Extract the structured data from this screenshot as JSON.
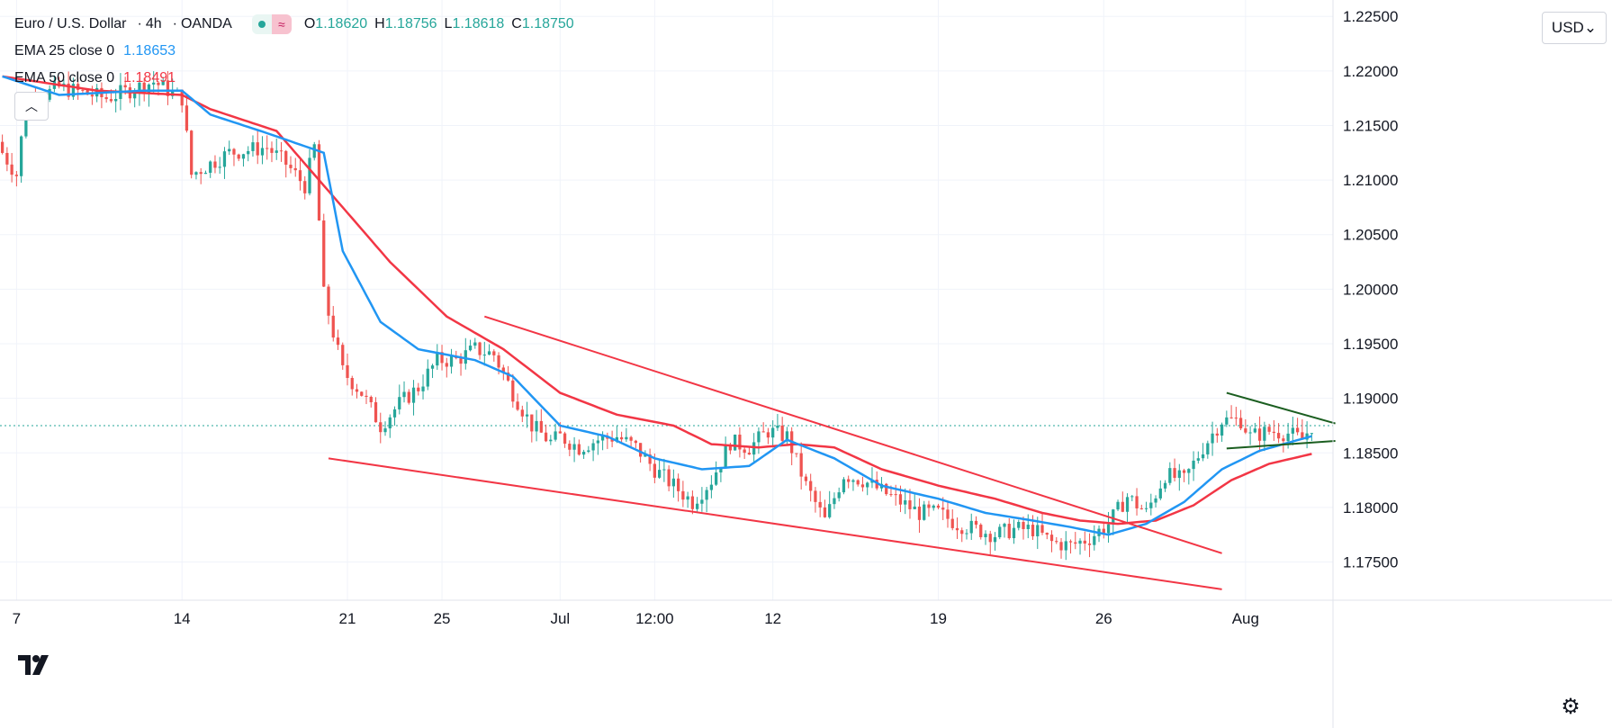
{
  "header": {
    "symbol": "Euro / U.S. Dollar",
    "sep": "·",
    "interval": "4h",
    "exchange": "OANDA",
    "badge_icon": "approx-icon",
    "ohlc": [
      {
        "label": "O",
        "value": "1.18620"
      },
      {
        "label": "H",
        "value": "1.18756"
      },
      {
        "label": "L",
        "value": "1.18618"
      },
      {
        "label": "C",
        "value": "1.18750"
      }
    ]
  },
  "indicators": [
    {
      "name": "EMA 25 close 0",
      "value": "1.18653",
      "color": "#2196f3"
    },
    {
      "name": "EMA 50 close 0",
      "value": "1.18491",
      "color": "#f23645"
    }
  ],
  "controls": {
    "collapse_icon": "chevron-up-icon",
    "currency_label": "USD",
    "currency_chevron": "⌄",
    "settings_icon": "gear-icon",
    "logo": "TradingView"
  },
  "colors": {
    "up": "#26a69a",
    "down": "#ef5350",
    "ema25": "#2196f3",
    "ema50": "#f23645",
    "trendline_red": "#f23645",
    "trendline_green": "#1b5e20",
    "grid": "#f0f3fa",
    "last_price_line": "#26a69a"
  },
  "chart_data": {
    "type": "candlestick",
    "title": "Euro / U.S. Dollar · 4h · OANDA",
    "y_axis": {
      "labels": [
        "1.17500",
        "1.18000",
        "1.18500",
        "1.19000",
        "1.19500",
        "1.20000",
        "1.20500",
        "1.21000",
        "1.21500",
        "1.22000",
        "1.22500"
      ],
      "values": [
        1.175,
        1.18,
        1.185,
        1.19,
        1.195,
        1.2,
        1.205,
        1.21,
        1.215,
        1.22,
        1.225
      ],
      "range": [
        1.1715,
        1.2265
      ]
    },
    "x_axis": {
      "labels": [
        "7",
        "14",
        "21",
        "25",
        "Jul",
        "12:00",
        "12",
        "19",
        "26",
        "Aug"
      ],
      "bar_index": [
        3,
        38,
        73,
        93,
        118,
        138,
        163,
        198,
        233,
        263
      ],
      "bar_count": 282
    },
    "last_price": 1.1875,
    "price_path": [
      [
        0,
        1.2125
      ],
      [
        3,
        1.2105
      ],
      [
        5,
        1.217
      ],
      [
        12,
        1.2185
      ],
      [
        22,
        1.2175
      ],
      [
        32,
        1.219
      ],
      [
        38,
        1.2175
      ],
      [
        40,
        1.2105
      ],
      [
        48,
        1.2125
      ],
      [
        56,
        1.213
      ],
      [
        60,
        1.2115
      ],
      [
        64,
        1.2095
      ],
      [
        66,
        1.213
      ],
      [
        68,
        1.1995
      ],
      [
        72,
        1.1925
      ],
      [
        76,
        1.1905
      ],
      [
        80,
        1.1875
      ],
      [
        84,
        1.1895
      ],
      [
        88,
        1.191
      ],
      [
        92,
        1.1935
      ],
      [
        96,
        1.1935
      ],
      [
        100,
        1.1945
      ],
      [
        104,
        1.194
      ],
      [
        108,
        1.1905
      ],
      [
        112,
        1.1875
      ],
      [
        116,
        1.186
      ],
      [
        118,
        1.1865
      ],
      [
        122,
        1.1855
      ],
      [
        126,
        1.1862
      ],
      [
        130,
        1.1865
      ],
      [
        134,
        1.1855
      ],
      [
        138,
        1.1835
      ],
      [
        142,
        1.182
      ],
      [
        146,
        1.1805
      ],
      [
        150,
        1.1825
      ],
      [
        154,
        1.186
      ],
      [
        158,
        1.1855
      ],
      [
        162,
        1.187
      ],
      [
        166,
        1.1865
      ],
      [
        170,
        1.182
      ],
      [
        174,
        1.1788
      ],
      [
        178,
        1.183
      ],
      [
        182,
        1.1825
      ],
      [
        186,
        1.1815
      ],
      [
        190,
        1.1805
      ],
      [
        194,
        1.1795
      ],
      [
        198,
        1.1795
      ],
      [
        202,
        1.1785
      ],
      [
        206,
        1.178
      ],
      [
        210,
        1.1775
      ],
      [
        214,
        1.178
      ],
      [
        218,
        1.178
      ],
      [
        222,
        1.1768
      ],
      [
        226,
        1.1765
      ],
      [
        230,
        1.1772
      ],
      [
        234,
        1.1785
      ],
      [
        238,
        1.181
      ],
      [
        242,
        1.1795
      ],
      [
        246,
        1.183
      ],
      [
        250,
        1.1825
      ],
      [
        254,
        1.1855
      ],
      [
        258,
        1.188
      ],
      [
        262,
        1.188
      ],
      [
        264,
        1.1865
      ],
      [
        268,
        1.187
      ],
      [
        272,
        1.1868
      ],
      [
        275,
        1.1862
      ],
      [
        277,
        1.1875
      ]
    ],
    "ema25_path": [
      [
        0,
        1.2195
      ],
      [
        12,
        1.2178
      ],
      [
        30,
        1.2182
      ],
      [
        38,
        1.2182
      ],
      [
        44,
        1.216
      ],
      [
        56,
        1.2143
      ],
      [
        68,
        1.2125
      ],
      [
        72,
        1.2035
      ],
      [
        80,
        1.197
      ],
      [
        88,
        1.1945
      ],
      [
        100,
        1.1935
      ],
      [
        108,
        1.192
      ],
      [
        118,
        1.1875
      ],
      [
        128,
        1.1865
      ],
      [
        138,
        1.1845
      ],
      [
        148,
        1.1835
      ],
      [
        158,
        1.1838
      ],
      [
        166,
        1.1862
      ],
      [
        176,
        1.1845
      ],
      [
        186,
        1.182
      ],
      [
        198,
        1.1808
      ],
      [
        208,
        1.1795
      ],
      [
        218,
        1.1788
      ],
      [
        226,
        1.1782
      ],
      [
        234,
        1.1775
      ],
      [
        242,
        1.1785
      ],
      [
        250,
        1.1805
      ],
      [
        258,
        1.1835
      ],
      [
        266,
        1.1852
      ],
      [
        277,
        1.18653
      ]
    ],
    "ema50_path": [
      [
        0,
        1.2195
      ],
      [
        20,
        1.2182
      ],
      [
        38,
        1.2178
      ],
      [
        44,
        1.2165
      ],
      [
        58,
        1.2145
      ],
      [
        64,
        1.2115
      ],
      [
        72,
        1.2075
      ],
      [
        82,
        1.2025
      ],
      [
        94,
        1.1975
      ],
      [
        106,
        1.1945
      ],
      [
        118,
        1.1905
      ],
      [
        130,
        1.1885
      ],
      [
        142,
        1.1875
      ],
      [
        150,
        1.1858
      ],
      [
        160,
        1.1855
      ],
      [
        168,
        1.1858
      ],
      [
        176,
        1.1855
      ],
      [
        186,
        1.1835
      ],
      [
        198,
        1.182
      ],
      [
        210,
        1.1808
      ],
      [
        220,
        1.1795
      ],
      [
        228,
        1.1788
      ],
      [
        236,
        1.1785
      ],
      [
        244,
        1.1788
      ],
      [
        252,
        1.1802
      ],
      [
        260,
        1.1825
      ],
      [
        268,
        1.184
      ],
      [
        277,
        1.18491
      ]
    ],
    "trendlines": [
      {
        "name": "upper-channel",
        "color": "#f23645",
        "from": [
          102,
          1.1975
        ],
        "to": [
          258,
          1.1758
        ]
      },
      {
        "name": "lower-channel",
        "color": "#f23645",
        "from": [
          69,
          1.1845
        ],
        "to": [
          258,
          1.1725
        ]
      },
      {
        "name": "triangle-top",
        "color": "#1b5e20",
        "from": [
          259,
          1.1905
        ],
        "to": [
          282,
          1.1877
        ]
      },
      {
        "name": "triangle-bottom",
        "color": "#1b5e20",
        "from": [
          259,
          1.1854
        ],
        "to": [
          282,
          1.1861
        ]
      }
    ],
    "grid": true
  }
}
